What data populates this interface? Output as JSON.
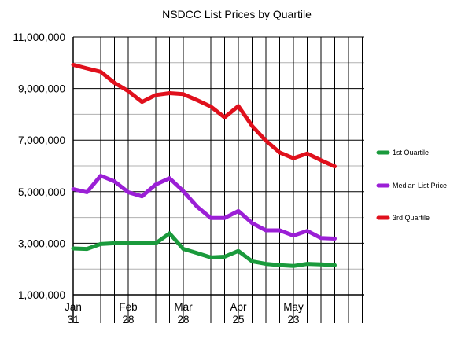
{
  "chart_data": {
    "type": "line",
    "title": "NSDCC List Prices by Quartile",
    "xlabel": "",
    "ylabel": "",
    "ylim": [
      1000000,
      11000000
    ],
    "ytick_labels": [
      "1,000,000",
      "3,000,000",
      "5,000,000",
      "7,000,000",
      "9,000,000",
      "11,000,000"
    ],
    "x_tick_labels": [
      {
        "index": 0,
        "line1": "Jan",
        "line2": "31"
      },
      {
        "index": 4,
        "line1": "Feb",
        "line2": "28"
      },
      {
        "index": 8,
        "line1": "Mar",
        "line2": "28"
      },
      {
        "index": 12,
        "line1": "Apr",
        "line2": "25"
      },
      {
        "index": 16,
        "line1": "May",
        "line2": "23"
      }
    ],
    "x_slots": 26,
    "grid": true,
    "legend_position": "right",
    "series": [
      {
        "name": "1st Quartile",
        "color": "#1a9a3c",
        "values": [
          2800000,
          2780000,
          2970000,
          3000000,
          3000000,
          3000000,
          3000000,
          3380000,
          2780000,
          2620000,
          2450000,
          2480000,
          2700000,
          2300000,
          2200000,
          2150000,
          2120000,
          2200000,
          2180000,
          2150000
        ]
      },
      {
        "name": "Median List Price",
        "color": "#9b1fd6",
        "values": [
          5100000,
          4980000,
          5620000,
          5400000,
          4980000,
          4820000,
          5280000,
          5520000,
          5020000,
          4420000,
          3980000,
          3980000,
          4250000,
          3780000,
          3500000,
          3500000,
          3300000,
          3480000,
          3200000,
          3180000
        ]
      },
      {
        "name": "3rd Quartile",
        "color": "#e0101c",
        "values": [
          9920000,
          9780000,
          9650000,
          9220000,
          8900000,
          8480000,
          8750000,
          8820000,
          8780000,
          8550000,
          8300000,
          7880000,
          8320000,
          7550000,
          6980000,
          6520000,
          6300000,
          6480000,
          6220000,
          5980000
        ]
      }
    ]
  }
}
